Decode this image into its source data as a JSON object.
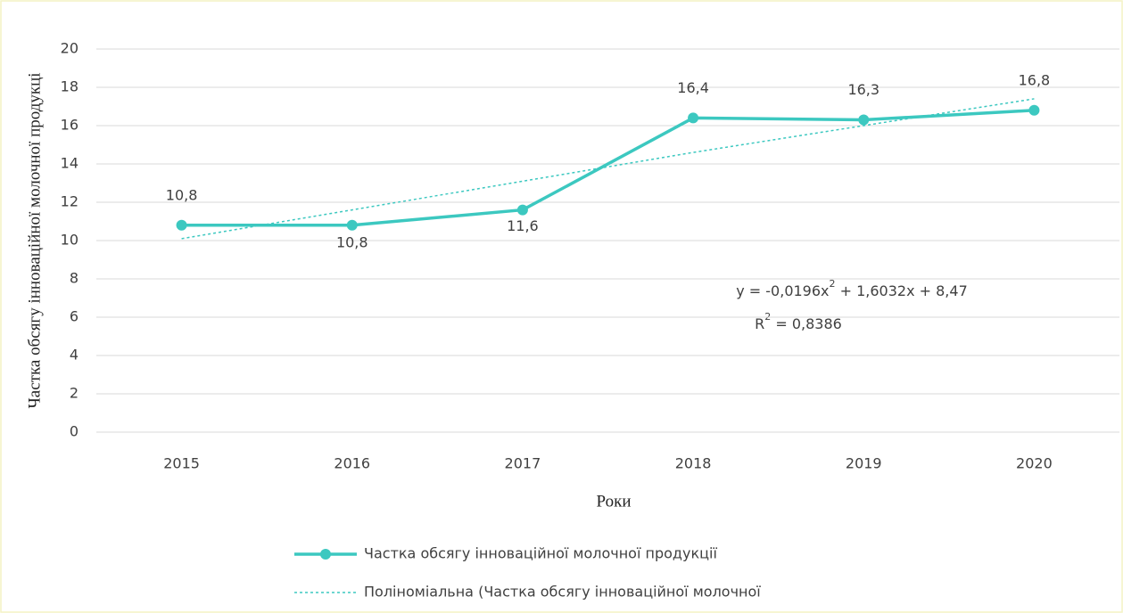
{
  "chart_data": {
    "type": "line",
    "categories": [
      "2015",
      "2016",
      "2017",
      "2018",
      "2019",
      "2020"
    ],
    "series": [
      {
        "name": "Частка обсягу інноваційної  молочної продукції",
        "color": "#3cc8c0",
        "values": [
          10.8,
          10.8,
          11.6,
          16.4,
          16.3,
          16.8
        ],
        "value_labels": [
          "10,8",
          "10,8",
          "11,6",
          "16,4",
          "16,3",
          "16,8"
        ]
      },
      {
        "name": "Поліноміальна (Частка обсягу інноваційної  молочної",
        "color": "#3cc8c0",
        "dashed": true,
        "values": [
          10.1,
          11.6,
          13.1,
          14.6,
          16.0,
          17.4
        ]
      }
    ],
    "ylim": [
      0,
      20
    ],
    "yticks": [
      0,
      2,
      4,
      6,
      8,
      10,
      12,
      14,
      16,
      18,
      20
    ],
    "grid": true,
    "y_label": "Частка обсягу інноваційної  молочної продукці",
    "x_label": "Роки",
    "trendline_equation": [
      "y = -0,0196x",
      "2",
      " + 1,6032x + 8,47"
    ],
    "trendline_r2": [
      "R",
      "2",
      " = 0,8386"
    ],
    "legend": "bottom"
  }
}
